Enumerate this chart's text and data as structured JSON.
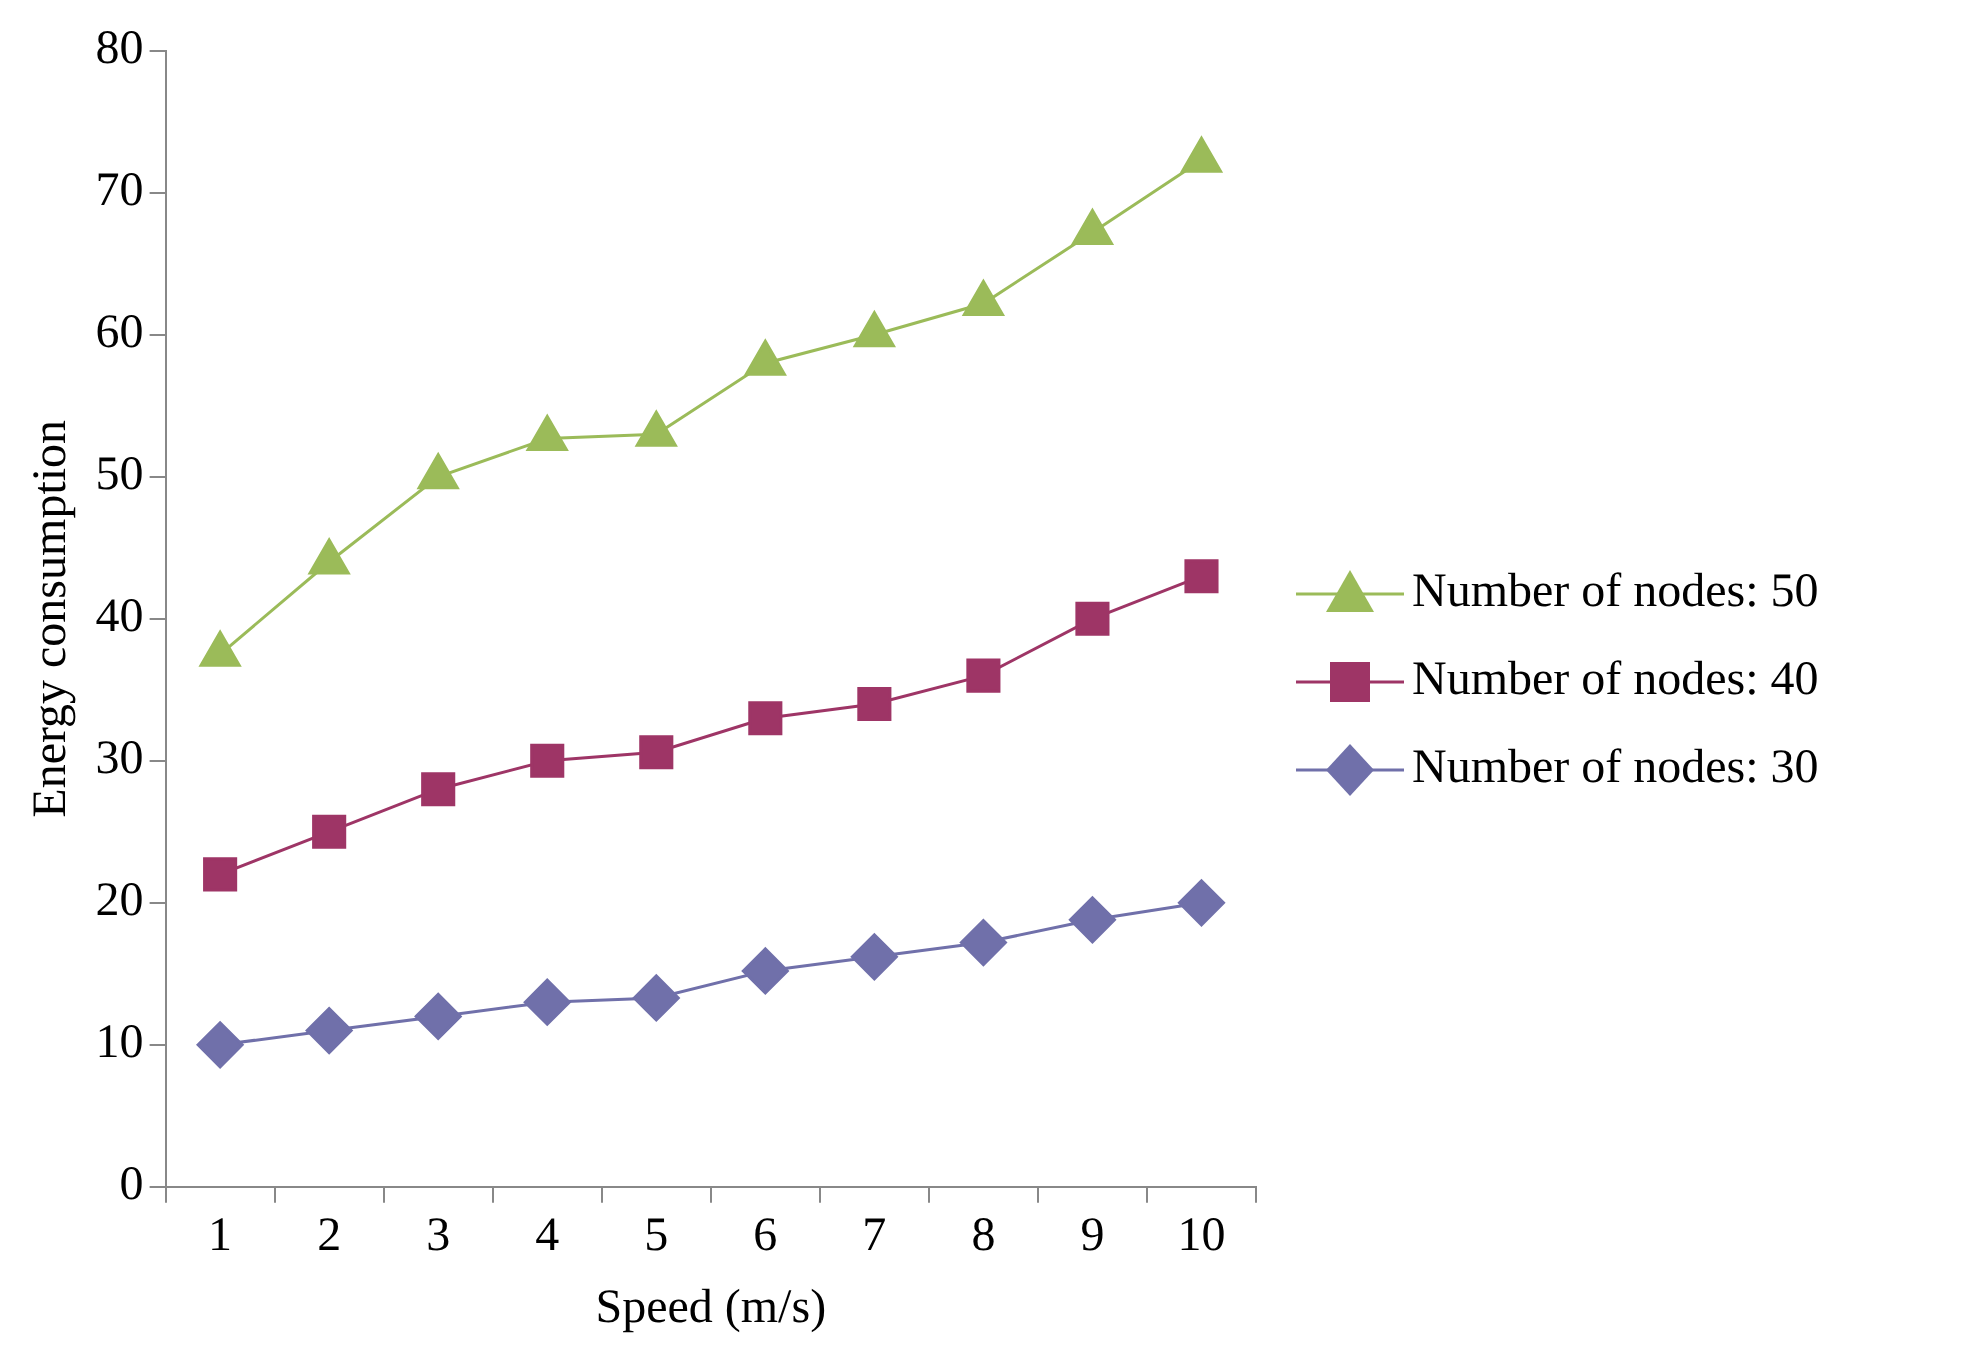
{
  "chart_data": {
    "type": "line",
    "xlabel": "Speed (m/s)",
    "ylabel": "Energy consumption",
    "categories": [
      "1",
      "2",
      "3",
      "4",
      "5",
      "6",
      "7",
      "8",
      "9",
      "10"
    ],
    "series": [
      {
        "name": "Number of nodes: 50",
        "color": "#9bbb59",
        "marker": "triangle",
        "values": [
          37.5,
          44,
          50,
          52.7,
          53,
          58,
          60,
          62.2,
          67.2,
          72.3
        ]
      },
      {
        "name": "Number of nodes: 40",
        "color": "#9e3566",
        "marker": "square",
        "values": [
          22,
          25,
          28,
          30,
          30.6,
          33,
          34,
          36,
          40,
          43
        ]
      },
      {
        "name": "Number of nodes: 30",
        "color": "#7070aa",
        "marker": "diamond",
        "values": [
          10,
          11,
          12,
          13,
          13.3,
          15.2,
          16.2,
          17.2,
          18.8,
          20
        ]
      }
    ],
    "ylim": [
      0,
      80
    ],
    "yticks": [
      0,
      10,
      20,
      30,
      40,
      50,
      60,
      70,
      80
    ],
    "grid": false,
    "legend": "right"
  }
}
